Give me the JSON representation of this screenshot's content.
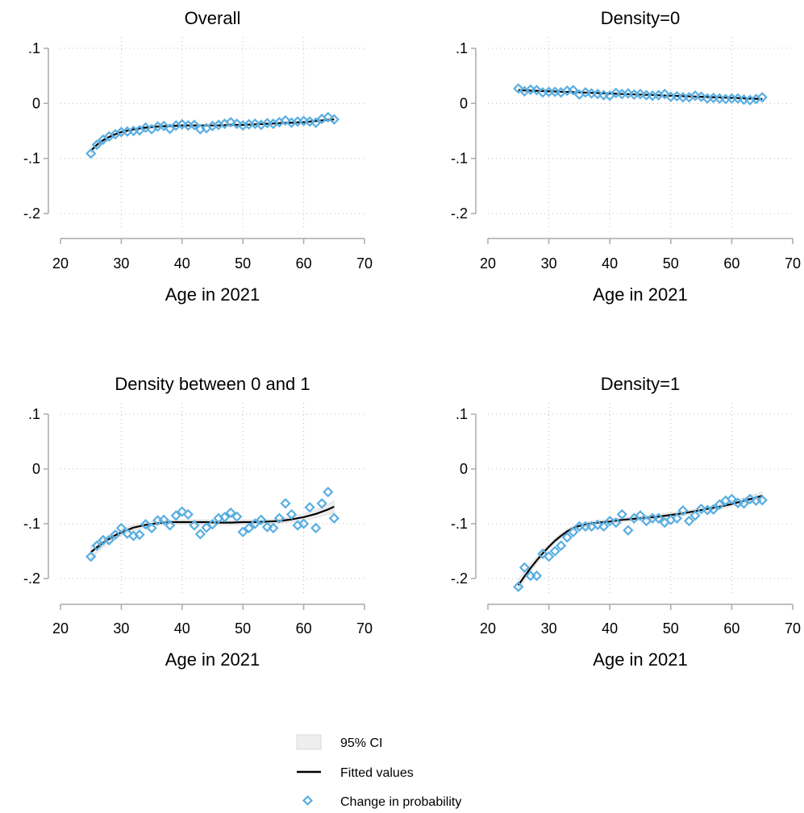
{
  "chart_data": [
    {
      "type": "scatter",
      "title": "Overall",
      "xlabel": "Age in 2021",
      "ylabel": "",
      "xlim": [
        20,
        70
      ],
      "ylim": [
        -0.25,
        0.1
      ],
      "xticks": [
        20,
        30,
        40,
        50,
        60,
        70
      ],
      "yticks": [
        -0.2,
        -0.1,
        0,
        0.1
      ],
      "xtick_labels": [
        "20",
        "30",
        "40",
        "50",
        "60",
        "70"
      ],
      "ytick_labels": [
        "-.2",
        "-.1",
        "0",
        ".1"
      ],
      "grid": true,
      "series": [
        {
          "name": "Change in probability",
          "kind": "scatter",
          "x": [
            25,
            26,
            27,
            28,
            29,
            30,
            31,
            32,
            33,
            34,
            35,
            36,
            37,
            38,
            39,
            40,
            41,
            42,
            43,
            44,
            45,
            46,
            47,
            48,
            49,
            50,
            51,
            52,
            53,
            54,
            55,
            56,
            57,
            58,
            59,
            60,
            61,
            62,
            63,
            64,
            65
          ],
          "y": [
            -0.091,
            -0.075,
            -0.066,
            -0.06,
            -0.056,
            -0.052,
            -0.051,
            -0.05,
            -0.049,
            -0.044,
            -0.047,
            -0.042,
            -0.041,
            -0.046,
            -0.04,
            -0.038,
            -0.04,
            -0.039,
            -0.047,
            -0.045,
            -0.041,
            -0.039,
            -0.037,
            -0.034,
            -0.037,
            -0.04,
            -0.038,
            -0.037,
            -0.039,
            -0.036,
            -0.037,
            -0.034,
            -0.031,
            -0.035,
            -0.033,
            -0.032,
            -0.033,
            -0.035,
            -0.028,
            -0.025,
            -0.029
          ]
        },
        {
          "name": "Fitted values",
          "kind": "line",
          "x": [
            25,
            26,
            27,
            28,
            29,
            30,
            32,
            34,
            36,
            38,
            40,
            42,
            44,
            46,
            48,
            50,
            52,
            54,
            56,
            58,
            60,
            62,
            64,
            65
          ],
          "y": [
            -0.086,
            -0.075,
            -0.067,
            -0.061,
            -0.056,
            -0.052,
            -0.047,
            -0.044,
            -0.042,
            -0.041,
            -0.04,
            -0.04,
            -0.04,
            -0.04,
            -0.039,
            -0.039,
            -0.038,
            -0.037,
            -0.036,
            -0.035,
            -0.034,
            -0.032,
            -0.03,
            -0.029
          ]
        },
        {
          "name": "95% CI",
          "kind": "band",
          "x": [
            25,
            26,
            27,
            28,
            29,
            30,
            32,
            34,
            36,
            38,
            40,
            42,
            44,
            46,
            48,
            50,
            52,
            54,
            56,
            58,
            60,
            62,
            64,
            65
          ],
          "lower": [
            -0.092,
            -0.079,
            -0.07,
            -0.063,
            -0.058,
            -0.054,
            -0.049,
            -0.046,
            -0.044,
            -0.043,
            -0.042,
            -0.041,
            -0.041,
            -0.041,
            -0.041,
            -0.04,
            -0.04,
            -0.039,
            -0.038,
            -0.037,
            -0.036,
            -0.034,
            -0.033,
            -0.032
          ],
          "upper": [
            -0.08,
            -0.071,
            -0.064,
            -0.059,
            -0.054,
            -0.05,
            -0.045,
            -0.042,
            -0.04,
            -0.039,
            -0.038,
            -0.039,
            -0.039,
            -0.039,
            -0.037,
            -0.038,
            -0.036,
            -0.035,
            -0.034,
            -0.033,
            -0.032,
            -0.03,
            -0.027,
            -0.026
          ]
        }
      ]
    },
    {
      "type": "scatter",
      "title": "Density=0",
      "xlabel": "Age in 2021",
      "ylabel": "",
      "xlim": [
        20,
        70
      ],
      "ylim": [
        -0.25,
        0.1
      ],
      "xticks": [
        20,
        30,
        40,
        50,
        60,
        70
      ],
      "yticks": [
        -0.2,
        -0.1,
        0,
        0.1
      ],
      "xtick_labels": [
        "20",
        "30",
        "40",
        "50",
        "60",
        "70"
      ],
      "ytick_labels": [
        "-.2",
        "-.1",
        "0",
        ".1"
      ],
      "grid": true,
      "series": [
        {
          "name": "Change in probability",
          "kind": "scatter",
          "x": [
            25,
            26,
            27,
            28,
            29,
            30,
            31,
            32,
            33,
            34,
            35,
            36,
            37,
            38,
            39,
            40,
            41,
            42,
            43,
            44,
            45,
            46,
            47,
            48,
            49,
            50,
            51,
            52,
            53,
            54,
            55,
            56,
            57,
            58,
            59,
            60,
            61,
            62,
            63,
            64,
            65
          ],
          "y": [
            0.027,
            0.022,
            0.025,
            0.024,
            0.02,
            0.021,
            0.021,
            0.02,
            0.023,
            0.024,
            0.016,
            0.02,
            0.018,
            0.017,
            0.015,
            0.014,
            0.019,
            0.017,
            0.018,
            0.016,
            0.017,
            0.015,
            0.014,
            0.015,
            0.017,
            0.012,
            0.013,
            0.011,
            0.011,
            0.014,
            0.012,
            0.009,
            0.01,
            0.009,
            0.008,
            0.009,
            0.009,
            0.007,
            0.006,
            0.008,
            0.011
          ]
        },
        {
          "name": "Fitted values",
          "kind": "line",
          "x": [
            25,
            30,
            35,
            40,
            45,
            50,
            55,
            60,
            65
          ],
          "y": [
            0.024,
            0.022,
            0.02,
            0.018,
            0.016,
            0.014,
            0.012,
            0.01,
            0.008
          ]
        },
        {
          "name": "95% CI",
          "kind": "band",
          "x": [
            25,
            30,
            35,
            40,
            45,
            50,
            55,
            60,
            65
          ],
          "lower": [
            0.021,
            0.02,
            0.019,
            0.017,
            0.015,
            0.013,
            0.011,
            0.009,
            0.006
          ],
          "upper": [
            0.027,
            0.024,
            0.021,
            0.019,
            0.017,
            0.015,
            0.013,
            0.011,
            0.01
          ]
        }
      ]
    },
    {
      "type": "scatter",
      "title": "Density between 0 and 1",
      "xlabel": "Age in 2021",
      "ylabel": "",
      "xlim": [
        20,
        70
      ],
      "ylim": [
        -0.25,
        0.1
      ],
      "xticks": [
        20,
        30,
        40,
        50,
        60,
        70
      ],
      "yticks": [
        -0.2,
        -0.1,
        0,
        0.1
      ],
      "xtick_labels": [
        "20",
        "30",
        "40",
        "50",
        "60",
        "70"
      ],
      "ytick_labels": [
        "-.2",
        "-.1",
        "0",
        ".1"
      ],
      "grid": true,
      "series": [
        {
          "name": "Change in probability",
          "kind": "scatter",
          "x": [
            25,
            26,
            27,
            28,
            29,
            30,
            31,
            32,
            33,
            34,
            35,
            36,
            37,
            38,
            39,
            40,
            41,
            42,
            43,
            44,
            45,
            46,
            47,
            48,
            49,
            50,
            51,
            52,
            53,
            54,
            55,
            56,
            57,
            58,
            59,
            60,
            61,
            62,
            63,
            64,
            65
          ],
          "y": [
            -0.16,
            -0.14,
            -0.13,
            -0.13,
            -0.12,
            -0.108,
            -0.118,
            -0.122,
            -0.12,
            -0.101,
            -0.108,
            -0.094,
            -0.093,
            -0.103,
            -0.085,
            -0.078,
            -0.083,
            -0.103,
            -0.119,
            -0.107,
            -0.101,
            -0.09,
            -0.088,
            -0.08,
            -0.087,
            -0.115,
            -0.108,
            -0.1,
            -0.093,
            -0.106,
            -0.108,
            -0.09,
            -0.063,
            -0.083,
            -0.103,
            -0.1,
            -0.07,
            -0.108,
            -0.063,
            -0.042,
            -0.09
          ]
        },
        {
          "name": "Fitted values",
          "kind": "line",
          "x": [
            25,
            26,
            27,
            28,
            29,
            30,
            32,
            34,
            36,
            38,
            40,
            42,
            44,
            46,
            48,
            50,
            52,
            54,
            56,
            58,
            60,
            62,
            64,
            65
          ],
          "y": [
            -0.152,
            -0.143,
            -0.135,
            -0.128,
            -0.121,
            -0.116,
            -0.107,
            -0.102,
            -0.099,
            -0.097,
            -0.097,
            -0.097,
            -0.097,
            -0.098,
            -0.098,
            -0.097,
            -0.097,
            -0.096,
            -0.095,
            -0.092,
            -0.088,
            -0.082,
            -0.074,
            -0.069
          ]
        },
        {
          "name": "95% CI",
          "kind": "band",
          "x": [
            25,
            26,
            27,
            28,
            29,
            30,
            32,
            34,
            36,
            38,
            40,
            42,
            44,
            46,
            48,
            50,
            52,
            54,
            56,
            58,
            60,
            62,
            64,
            65
          ],
          "lower": [
            -0.164,
            -0.153,
            -0.143,
            -0.135,
            -0.127,
            -0.121,
            -0.112,
            -0.106,
            -0.103,
            -0.101,
            -0.101,
            -0.101,
            -0.101,
            -0.102,
            -0.102,
            -0.101,
            -0.101,
            -0.1,
            -0.099,
            -0.097,
            -0.094,
            -0.089,
            -0.083,
            -0.08
          ],
          "upper": [
            -0.14,
            -0.133,
            -0.127,
            -0.121,
            -0.115,
            -0.111,
            -0.102,
            -0.098,
            -0.095,
            -0.093,
            -0.093,
            -0.093,
            -0.093,
            -0.094,
            -0.094,
            -0.093,
            -0.093,
            -0.092,
            -0.091,
            -0.087,
            -0.082,
            -0.075,
            -0.065,
            -0.058
          ]
        }
      ]
    },
    {
      "type": "scatter",
      "title": "Density=1",
      "xlabel": "Age in 2021",
      "ylabel": "",
      "xlim": [
        20,
        70
      ],
      "ylim": [
        -0.25,
        0.1
      ],
      "xticks": [
        20,
        30,
        40,
        50,
        60,
        70
      ],
      "yticks": [
        -0.2,
        -0.1,
        0,
        0.1
      ],
      "xtick_labels": [
        "20",
        "30",
        "40",
        "50",
        "60",
        "70"
      ],
      "ytick_labels": [
        "-.2",
        "-.1",
        "0",
        ".1"
      ],
      "grid": true,
      "series": [
        {
          "name": "Change in probability",
          "kind": "scatter",
          "x": [
            25,
            26,
            27,
            28,
            29,
            30,
            31,
            32,
            33,
            34,
            35,
            36,
            37,
            38,
            39,
            40,
            41,
            42,
            43,
            44,
            45,
            46,
            47,
            48,
            49,
            50,
            51,
            52,
            53,
            54,
            55,
            56,
            57,
            58,
            59,
            60,
            61,
            62,
            63,
            64,
            65
          ],
          "y": [
            -0.215,
            -0.18,
            -0.195,
            -0.195,
            -0.155,
            -0.16,
            -0.15,
            -0.14,
            -0.125,
            -0.115,
            -0.105,
            -0.105,
            -0.105,
            -0.102,
            -0.105,
            -0.095,
            -0.098,
            -0.083,
            -0.112,
            -0.09,
            -0.085,
            -0.095,
            -0.09,
            -0.09,
            -0.098,
            -0.093,
            -0.09,
            -0.076,
            -0.095,
            -0.085,
            -0.073,
            -0.075,
            -0.074,
            -0.065,
            -0.058,
            -0.055,
            -0.062,
            -0.063,
            -0.055,
            -0.058,
            -0.057
          ]
        },
        {
          "name": "Fitted values",
          "kind": "line",
          "x": [
            25,
            26,
            27,
            28,
            29,
            30,
            31,
            32,
            33,
            34,
            35,
            36,
            38,
            40,
            42,
            44,
            46,
            48,
            50,
            52,
            54,
            56,
            58,
            60,
            62,
            64,
            65
          ],
          "y": [
            -0.212,
            -0.196,
            -0.181,
            -0.167,
            -0.154,
            -0.142,
            -0.131,
            -0.122,
            -0.114,
            -0.108,
            -0.104,
            -0.101,
            -0.098,
            -0.096,
            -0.093,
            -0.091,
            -0.089,
            -0.087,
            -0.084,
            -0.081,
            -0.077,
            -0.073,
            -0.069,
            -0.064,
            -0.058,
            -0.052,
            -0.049
          ]
        },
        {
          "name": "95% CI",
          "kind": "band",
          "x": [
            25,
            26,
            27,
            28,
            29,
            30,
            31,
            32,
            33,
            34,
            35,
            36,
            38,
            40,
            42,
            44,
            46,
            48,
            50,
            52,
            54,
            56,
            58,
            60,
            62,
            64,
            65
          ],
          "lower": [
            -0.222,
            -0.204,
            -0.188,
            -0.173,
            -0.159,
            -0.146,
            -0.135,
            -0.126,
            -0.118,
            -0.112,
            -0.108,
            -0.105,
            -0.102,
            -0.1,
            -0.097,
            -0.095,
            -0.093,
            -0.091,
            -0.088,
            -0.085,
            -0.081,
            -0.077,
            -0.073,
            -0.068,
            -0.063,
            -0.058,
            -0.056
          ],
          "upper": [
            -0.202,
            -0.188,
            -0.174,
            -0.161,
            -0.149,
            -0.138,
            -0.127,
            -0.118,
            -0.11,
            -0.104,
            -0.1,
            -0.097,
            -0.094,
            -0.092,
            -0.089,
            -0.087,
            -0.085,
            -0.083,
            -0.08,
            -0.077,
            -0.073,
            -0.069,
            -0.065,
            -0.06,
            -0.053,
            -0.046,
            -0.042
          ]
        }
      ]
    }
  ],
  "legend": {
    "placement": "bottom-center",
    "items": [
      {
        "key": "ci",
        "label": "95% CI"
      },
      {
        "key": "fit",
        "label": "Fitted values"
      },
      {
        "key": "points",
        "label": "Change in probability"
      }
    ]
  },
  "colors": {
    "marker": "#5AAEE0",
    "fit_line": "#000000",
    "ci_fill": "#EEEEEE",
    "ci_stroke": "#D9D9D9",
    "axis": "#AAAAAA",
    "grid": "#BBBBBB"
  }
}
